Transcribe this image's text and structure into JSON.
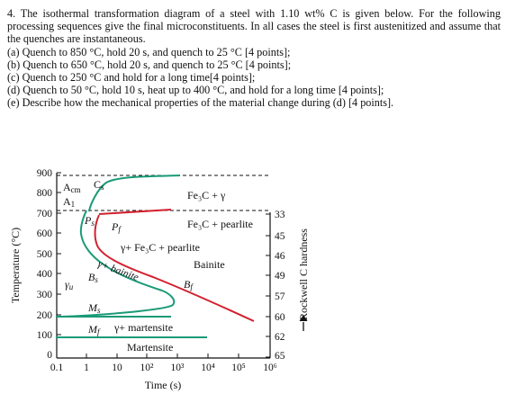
{
  "problem": {
    "stem": "4. The isothermal transformation diagram of a steel with 1.10 wt% C is given below. For the following processing sequences give the final microconstituents. In all cases the steel is first austenitized and assume that the quenches are instantaneous.",
    "items": [
      "(a) Quench to 850 °C, hold 20 s, and quench to 25 °C [4 points];",
      "(b) Quench to 650 °C, hold 20 s, and quench to 25 °C [4 points];",
      "(c) Quench to 250 °C and hold for a long time[4 points];",
      "(d) Quench to 50 °C, hold 10 s, heat up to 400 °C, and hold for a long time [4 points];",
      "(e) Describe how the mechanical properties of the material change during (d) [4 points]."
    ]
  },
  "diagram": {
    "y_axis_label": "Temperature (°C)",
    "x_axis_label": "Time (s)",
    "right_axis_label": "Rockwell C hardness",
    "y_ticks": [
      "900",
      "800",
      "700",
      "600",
      "500",
      "400",
      "300",
      "200",
      "100",
      "0"
    ],
    "x_ticks": [
      "0.1",
      "1",
      "10",
      "10²",
      "10³",
      "10⁴",
      "10⁵",
      "10⁶"
    ],
    "hardness_ticks": [
      "33",
      "45",
      "46",
      "49",
      "57",
      "60",
      "62",
      "65"
    ],
    "regions": {
      "acm": "A",
      "acm_sub": "cm",
      "a1": "A",
      "a1_sub": "1",
      "cs": "C",
      "cs_sub": "s",
      "fe3c_gamma": "Fe₃C + γ",
      "ps": "P",
      "ps_sub": "s",
      "pf": "P",
      "pf_sub": "f",
      "fe3c_pearlite": "Fe₃C + pearlite",
      "gamma_fe3c_pearlite": "γ+ Fe₃C + pearlite",
      "bainite": "Bainite",
      "gamma_bainite": "γ+ bainite",
      "gamma_u": "γ",
      "gamma_u_sub": "u",
      "bs": "B",
      "bs_sub": "s",
      "bf": "B",
      "bf_sub": "f",
      "ms": "M",
      "ms_sub": "s",
      "mf": "M",
      "mf_sub": "f",
      "gamma_martensite": "γ+ martensite",
      "martensite": "Martensite"
    },
    "colors": {
      "start_curve": "#1a9a77",
      "finish_curve": "#d2212e",
      "axis": "#111111"
    }
  }
}
